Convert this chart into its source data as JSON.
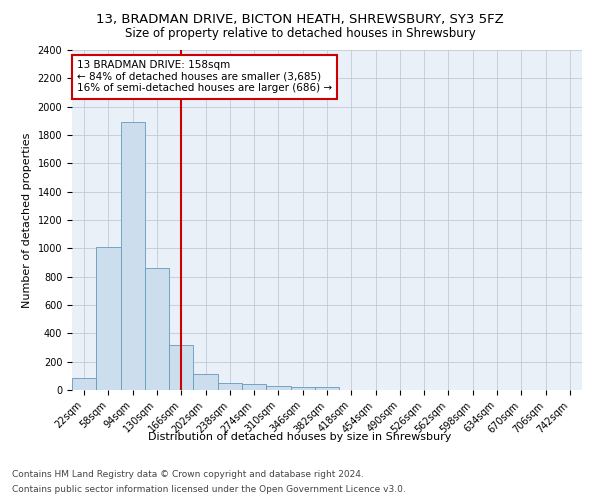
{
  "title1": "13, BRADMAN DRIVE, BICTON HEATH, SHREWSBURY, SY3 5FZ",
  "title2": "Size of property relative to detached houses in Shrewsbury",
  "xlabel": "Distribution of detached houses by size in Shrewsbury",
  "ylabel": "Number of detached properties",
  "footnote1": "Contains HM Land Registry data © Crown copyright and database right 2024.",
  "footnote2": "Contains public sector information licensed under the Open Government Licence v3.0.",
  "bin_labels": [
    "22sqm",
    "58sqm",
    "94sqm",
    "130sqm",
    "166sqm",
    "202sqm",
    "238sqm",
    "274sqm",
    "310sqm",
    "346sqm",
    "382sqm",
    "418sqm",
    "454sqm",
    "490sqm",
    "526sqm",
    "562sqm",
    "598sqm",
    "634sqm",
    "670sqm",
    "706sqm",
    "742sqm"
  ],
  "bar_heights": [
    85,
    1010,
    1895,
    860,
    320,
    110,
    50,
    45,
    30,
    20,
    20,
    0,
    0,
    0,
    0,
    0,
    0,
    0,
    0,
    0,
    0
  ],
  "bar_color": "#ccdded",
  "bar_edge_color": "#6699bb",
  "red_line_x": 4.0,
  "annotation_text": "13 BRADMAN DRIVE: 158sqm\n← 84% of detached houses are smaller (3,685)\n16% of semi-detached houses are larger (686) →",
  "annotation_box_color": "#ffffff",
  "annotation_box_edge": "#cc0000",
  "red_line_color": "#cc0000",
  "ylim": [
    0,
    2400
  ],
  "yticks": [
    0,
    200,
    400,
    600,
    800,
    1000,
    1200,
    1400,
    1600,
    1800,
    2000,
    2200,
    2400
  ],
  "grid_color": "#c0ccd8",
  "background_color": "#eaf0f8",
  "title1_fontsize": 9.5,
  "title2_fontsize": 8.5,
  "footnote_fontsize": 6.5,
  "xlabel_fontsize": 8,
  "ylabel_fontsize": 8,
  "tick_fontsize": 7,
  "annot_fontsize": 7.5
}
